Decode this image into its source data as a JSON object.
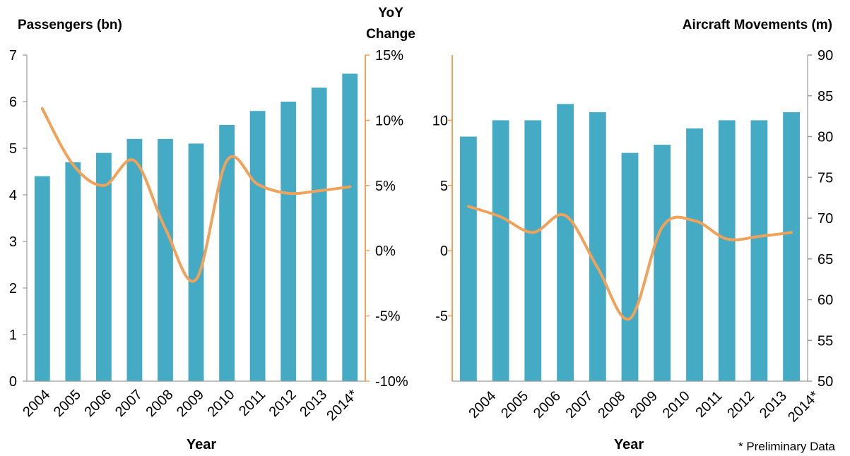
{
  "colors": {
    "bar": "#45aac4",
    "line": "#f0a25a",
    "right_axis_line": "#f0a25a",
    "left_axis_line": "#999999"
  },
  "footnote": "* Preliminary Data",
  "chart_data": [
    {
      "type": "bar",
      "title": "",
      "xlabel": "Year",
      "ylabel": "Passengers (bn)",
      "y2label": "YoY Change",
      "categories": [
        "2004",
        "2005",
        "2006",
        "2007",
        "2008",
        "2009",
        "2010",
        "2011",
        "2012",
        "2013",
        "2014*"
      ],
      "ylim": [
        0,
        7
      ],
      "yticks": [
        "0",
        "1",
        "2",
        "3",
        "4",
        "5",
        "6",
        "7"
      ],
      "y2lim": [
        -10,
        15
      ],
      "y2ticks": [
        "-10%",
        "-5%",
        "0%",
        "5%",
        "10%",
        "15%"
      ],
      "grid": false,
      "series": [
        {
          "name": "Passengers (bn)",
          "type": "bar",
          "axis": "left",
          "values": [
            4.4,
            4.7,
            4.9,
            5.2,
            5.2,
            5.1,
            5.5,
            5.8,
            6.0,
            6.3,
            6.6
          ]
        },
        {
          "name": "YoY Change",
          "type": "line",
          "axis": "right",
          "values": [
            10.9,
            6.6,
            5.0,
            6.9,
            1.7,
            -2.2,
            6.9,
            5.1,
            4.4,
            4.6,
            4.9
          ]
        }
      ]
    },
    {
      "type": "bar",
      "title": "",
      "xlabel": "Year",
      "ylabel": "Aircraft Movements (m)",
      "y2label": "",
      "categories": [
        "2004",
        "2005",
        "2006",
        "2007",
        "2008",
        "2009",
        "2010",
        "2011",
        "2012",
        "2013",
        "2014*"
      ],
      "ylim": [
        50,
        90
      ],
      "yticks": [
        "50",
        "55",
        "60",
        "65",
        "70",
        "75",
        "80",
        "85",
        "90"
      ],
      "y2lim": [
        -10,
        15
      ],
      "y2ticks": [
        "-5",
        "0",
        "5",
        "10"
      ],
      "grid": false,
      "series": [
        {
          "name": "Aircraft Movements (m)",
          "type": "bar",
          "axis": "right",
          "values": [
            80,
            82,
            82,
            84,
            83,
            78,
            79,
            81,
            82,
            82,
            83
          ]
        },
        {
          "name": "YoY Change",
          "type": "line",
          "axis": "left",
          "values": [
            3.4,
            2.6,
            1.4,
            2.7,
            -1.3,
            -5.2,
            1.8,
            2.3,
            0.9,
            1.1,
            1.4
          ]
        }
      ]
    }
  ]
}
